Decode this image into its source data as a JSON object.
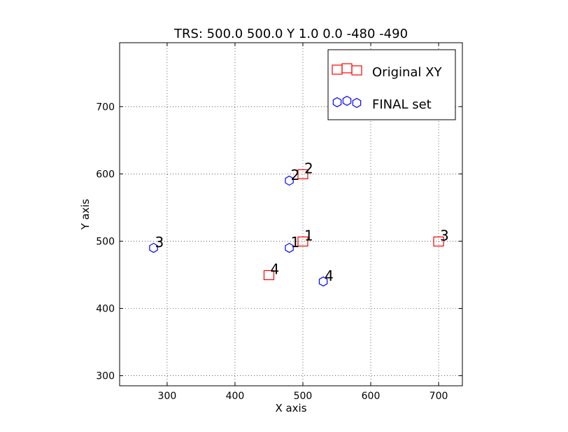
{
  "chart_data": {
    "type": "scatter",
    "title": "TRS: 500.0 500.0 Y 1.0 0.0 -480 -490",
    "xlabel": "X axis",
    "ylabel": "Y axis",
    "xlim": [
      230,
      735
    ],
    "ylim": [
      285,
      795
    ],
    "xticks": [
      300,
      400,
      500,
      600,
      700
    ],
    "yticks": [
      300,
      400,
      500,
      600,
      700
    ],
    "grid": true,
    "grid_style": "dotted",
    "legend_position": "top-right",
    "series": [
      {
        "name": "Original XY",
        "marker": "square",
        "color": "#ff0000",
        "points": [
          {
            "x": 500,
            "y": 500,
            "label": "1"
          },
          {
            "x": 500,
            "y": 600,
            "label": "2"
          },
          {
            "x": 700,
            "y": 500,
            "label": "3"
          },
          {
            "x": 450,
            "y": 450,
            "label": "4"
          }
        ]
      },
      {
        "name": "FINAL set",
        "marker": "hexagon",
        "color": "#0000ff",
        "points": [
          {
            "x": 480,
            "y": 490,
            "label": "1"
          },
          {
            "x": 480,
            "y": 590,
            "label": "2"
          },
          {
            "x": 280,
            "y": 490,
            "label": "3"
          },
          {
            "x": 530,
            "y": 440,
            "label": "4"
          }
        ]
      }
    ]
  }
}
